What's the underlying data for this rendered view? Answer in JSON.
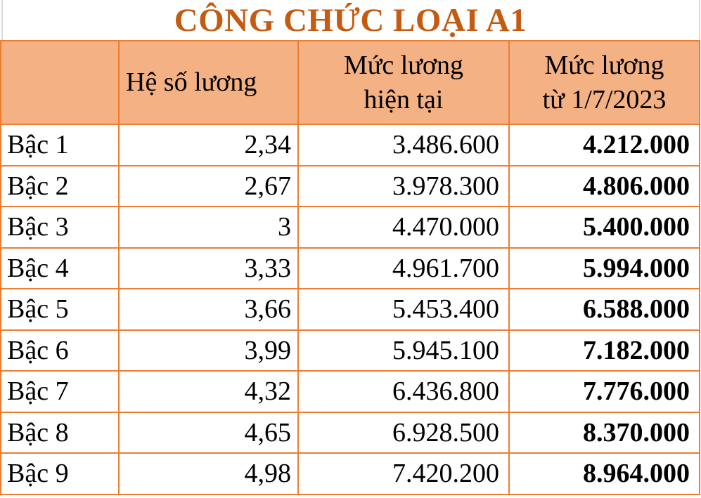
{
  "page": {
    "title": "CÔNG CHỨC LOẠI A1"
  },
  "colors": {
    "title_text": "#C55A11",
    "header_fill": "#F4B183",
    "grid_border": "#ED7D31",
    "body_text": "#000000",
    "page_background": "#FFFFFF",
    "edge_gridline": "#D9D9D9"
  },
  "table": {
    "header": {
      "grade_label": "",
      "coefficient_label": "Hệ số lương",
      "current_line1": "Mức lương",
      "current_line2": "hiện tại",
      "new_line1": "Mức lương",
      "new_line2": "từ 1/7/2023"
    },
    "rows": [
      {
        "grade": "Bậc 1",
        "coefficient": "2,34",
        "current": "3.486.600",
        "new_salary": "4.212.000"
      },
      {
        "grade": "Bậc 2",
        "coefficient": "2,67",
        "current": "3.978.300",
        "new_salary": "4.806.000"
      },
      {
        "grade": "Bậc 3",
        "coefficient": "3",
        "current": "4.470.000",
        "new_salary": "5.400.000"
      },
      {
        "grade": "Bậc 4",
        "coefficient": "3,33",
        "current": "4.961.700",
        "new_salary": "5.994.000"
      },
      {
        "grade": "Bậc 5",
        "coefficient": "3,66",
        "current": "5.453.400",
        "new_salary": "6.588.000"
      },
      {
        "grade": "Bậc 6",
        "coefficient": "3,99",
        "current": "5.945.100",
        "new_salary": "7.182.000"
      },
      {
        "grade": "Bậc 7",
        "coefficient": "4,32",
        "current": "6.436.800",
        "new_salary": "7.776.000"
      },
      {
        "grade": "Bậc 8",
        "coefficient": "4,65",
        "current": "6.928.500",
        "new_salary": "8.370.000"
      },
      {
        "grade": "Bậc 9",
        "coefficient": "4,98",
        "current": "7.420.200",
        "new_salary": "8.964.000"
      }
    ]
  },
  "chart_data": {
    "type": "table",
    "title": "CÔNG CHỨC LOẠI A1",
    "columns": [
      "Bậc",
      "Hệ số lương",
      "Mức lương hiện tại",
      "Mức lương từ 1/7/2023"
    ],
    "rows": [
      [
        "Bậc 1",
        "2,34",
        "3.486.600",
        "4.212.000"
      ],
      [
        "Bậc 2",
        "2,67",
        "3.978.300",
        "4.806.000"
      ],
      [
        "Bậc 3",
        "3",
        "4.470.000",
        "5.400.000"
      ],
      [
        "Bậc 4",
        "3,33",
        "4.961.700",
        "5.994.000"
      ],
      [
        "Bậc 5",
        "3,66",
        "5.453.400",
        "6.588.000"
      ],
      [
        "Bậc 6",
        "3,99",
        "5.945.100",
        "7.182.000"
      ],
      [
        "Bậc 7",
        "4,32",
        "6.436.800",
        "7.776.000"
      ],
      [
        "Bậc 8",
        "4,65",
        "6.928.500",
        "8.370.000"
      ],
      [
        "Bậc 9",
        "4,98",
        "7.420.200",
        "8.964.000"
      ]
    ],
    "coefficient_values": [
      2.34,
      2.67,
      3.0,
      3.33,
      3.66,
      3.99,
      4.32,
      4.65,
      4.98
    ],
    "current_salary_vnd": [
      3486600,
      3978300,
      4470000,
      4961700,
      5453400,
      5945100,
      6436800,
      6928500,
      7420200
    ],
    "new_salary_vnd": [
      4212000,
      4806000,
      5400000,
      5994000,
      6588000,
      7182000,
      7776000,
      8370000,
      8964000
    ]
  }
}
